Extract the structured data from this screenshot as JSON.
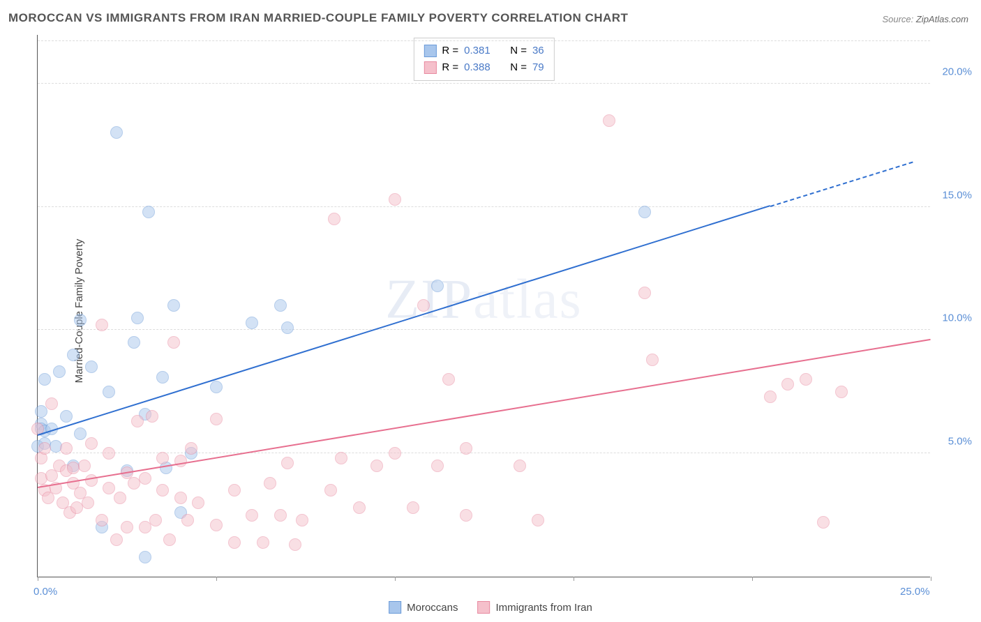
{
  "title": "MOROCCAN VS IMMIGRANTS FROM IRAN MARRIED-COUPLE FAMILY POVERTY CORRELATION CHART",
  "source_prefix": "Source: ",
  "source_site": "ZipAtlas.com",
  "watermark": "ZIPatlas",
  "yaxis_title": "Married-Couple Family Poverty",
  "chart": {
    "type": "scatter-with-regression",
    "background_color": "#ffffff",
    "grid_color": "#dddddd",
    "axis_color": "#555555",
    "tick_label_color": "#5b8fd6",
    "xlim": [
      0,
      25
    ],
    "ylim": [
      0,
      22
    ],
    "x_ticks": [
      0,
      5,
      10,
      15,
      20,
      25
    ],
    "y_ticks": [
      5,
      10,
      15,
      20
    ],
    "x_tick_labels": {
      "0": "0.0%",
      "25": "25.0%"
    },
    "y_tick_labels": {
      "5": "5.0%",
      "10": "10.0%",
      "15": "15.0%",
      "20": "20.0%"
    },
    "point_radius": 9,
    "point_opacity": 0.5,
    "series": [
      {
        "key": "moroccans",
        "label": "Moroccans",
        "color_fill": "#a8c6ec",
        "color_stroke": "#6b9bd8",
        "line_color": "#2f6fd0",
        "R": "0.381",
        "N": "36",
        "regression": {
          "x0": 0,
          "y0": 5.7,
          "x1": 20.5,
          "y1": 15.0,
          "x2_dash": 24.5,
          "y2_dash": 16.8
        },
        "points": [
          [
            0.0,
            5.3
          ],
          [
            0.1,
            6.2
          ],
          [
            0.1,
            6.0
          ],
          [
            0.1,
            6.7
          ],
          [
            0.2,
            5.9
          ],
          [
            0.2,
            5.4
          ],
          [
            0.2,
            8.0
          ],
          [
            0.4,
            6.0
          ],
          [
            0.5,
            5.3
          ],
          [
            0.6,
            8.3
          ],
          [
            0.8,
            6.5
          ],
          [
            1.0,
            4.5
          ],
          [
            1.0,
            9.0
          ],
          [
            1.2,
            5.8
          ],
          [
            1.2,
            10.4
          ],
          [
            1.5,
            8.5
          ],
          [
            1.8,
            2.0
          ],
          [
            2.0,
            7.5
          ],
          [
            2.2,
            18.0
          ],
          [
            2.5,
            4.3
          ],
          [
            2.7,
            9.5
          ],
          [
            2.8,
            10.5
          ],
          [
            3.0,
            0.8
          ],
          [
            3.0,
            6.6
          ],
          [
            3.1,
            14.8
          ],
          [
            3.5,
            8.1
          ],
          [
            3.6,
            4.4
          ],
          [
            3.8,
            11.0
          ],
          [
            4.0,
            2.6
          ],
          [
            4.3,
            5.0
          ],
          [
            5.0,
            7.7
          ],
          [
            6.0,
            10.3
          ],
          [
            6.8,
            11.0
          ],
          [
            7.0,
            10.1
          ],
          [
            11.2,
            11.8
          ],
          [
            17.0,
            14.8
          ]
        ]
      },
      {
        "key": "iran",
        "label": "Immigrants from Iran",
        "color_fill": "#f5c0cb",
        "color_stroke": "#e88aa0",
        "line_color": "#e76f8f",
        "R": "0.388",
        "N": "79",
        "regression": {
          "x0": 0,
          "y0": 3.6,
          "x1": 25,
          "y1": 9.6
        },
        "points": [
          [
            0.0,
            6.0
          ],
          [
            0.1,
            4.0
          ],
          [
            0.1,
            4.8
          ],
          [
            0.2,
            3.5
          ],
          [
            0.2,
            5.2
          ],
          [
            0.3,
            3.2
          ],
          [
            0.4,
            4.1
          ],
          [
            0.4,
            7.0
          ],
          [
            0.5,
            3.6
          ],
          [
            0.6,
            4.5
          ],
          [
            0.7,
            3.0
          ],
          [
            0.8,
            4.3
          ],
          [
            0.8,
            5.2
          ],
          [
            0.9,
            2.6
          ],
          [
            1.0,
            3.8
          ],
          [
            1.0,
            4.4
          ],
          [
            1.1,
            2.8
          ],
          [
            1.2,
            3.4
          ],
          [
            1.3,
            4.5
          ],
          [
            1.4,
            3.0
          ],
          [
            1.5,
            3.9
          ],
          [
            1.5,
            5.4
          ],
          [
            1.8,
            2.3
          ],
          [
            1.8,
            10.2
          ],
          [
            2.0,
            3.6
          ],
          [
            2.0,
            5.0
          ],
          [
            2.2,
            1.5
          ],
          [
            2.3,
            3.2
          ],
          [
            2.5,
            4.2
          ],
          [
            2.5,
            2.0
          ],
          [
            2.7,
            3.8
          ],
          [
            2.8,
            6.3
          ],
          [
            3.0,
            2.0
          ],
          [
            3.0,
            4.0
          ],
          [
            3.2,
            6.5
          ],
          [
            3.3,
            2.3
          ],
          [
            3.5,
            3.5
          ],
          [
            3.5,
            4.8
          ],
          [
            3.7,
            1.5
          ],
          [
            3.8,
            9.5
          ],
          [
            4.0,
            3.2
          ],
          [
            4.0,
            4.7
          ],
          [
            4.2,
            2.3
          ],
          [
            4.3,
            5.2
          ],
          [
            4.5,
            3.0
          ],
          [
            5.0,
            2.1
          ],
          [
            5.0,
            6.4
          ],
          [
            5.5,
            1.4
          ],
          [
            5.5,
            3.5
          ],
          [
            6.0,
            2.5
          ],
          [
            6.3,
            1.4
          ],
          [
            6.5,
            3.8
          ],
          [
            6.8,
            2.5
          ],
          [
            7.0,
            4.6
          ],
          [
            7.2,
            1.3
          ],
          [
            7.4,
            2.3
          ],
          [
            8.2,
            3.5
          ],
          [
            8.3,
            14.5
          ],
          [
            8.5,
            4.8
          ],
          [
            9.0,
            2.8
          ],
          [
            9.5,
            4.5
          ],
          [
            10.0,
            15.3
          ],
          [
            10.0,
            5.0
          ],
          [
            10.5,
            2.8
          ],
          [
            10.8,
            11.0
          ],
          [
            11.2,
            4.5
          ],
          [
            11.5,
            8.0
          ],
          [
            12.0,
            5.2
          ],
          [
            12.0,
            2.5
          ],
          [
            13.5,
            4.5
          ],
          [
            14.0,
            2.3
          ],
          [
            16.0,
            18.5
          ],
          [
            17.0,
            11.5
          ],
          [
            17.2,
            8.8
          ],
          [
            20.5,
            7.3
          ],
          [
            21.0,
            7.8
          ],
          [
            21.5,
            8.0
          ],
          [
            22.0,
            2.2
          ],
          [
            22.5,
            7.5
          ]
        ]
      }
    ]
  },
  "legend_stat_labels": {
    "R": "R  =",
    "N": "N  ="
  }
}
